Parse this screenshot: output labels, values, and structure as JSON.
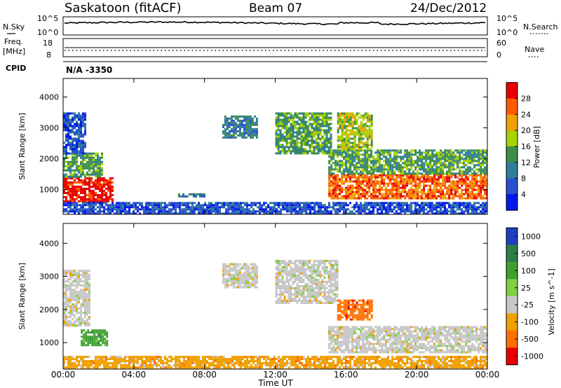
{
  "header": {
    "station": "Saskatoon (fitACF)",
    "beam": "Beam 07",
    "date": "24/Dec/2012"
  },
  "noise_panel": {
    "left_label": "N.Sky",
    "right_label": "N.Search",
    "left_ticks": [
      "10^5",
      "10^0"
    ],
    "right_ticks": [
      "10^5",
      "10^0"
    ]
  },
  "freq_panel": {
    "left_label_1": "Freq.",
    "left_label_2": "[MHz]",
    "right_label": "Nave",
    "left_ticks": [
      "18",
      "8"
    ],
    "right_ticks": [
      "60",
      "0"
    ]
  },
  "cpid": {
    "label": "CPID",
    "value": "N/A -3350"
  },
  "chart_data": [
    {
      "type": "heatmap",
      "variable": "Power",
      "ylabel": "Slant Range [km]",
      "ylim": [
        200,
        4600
      ],
      "yticks": [
        1000,
        2000,
        3000,
        4000
      ],
      "colorbar_label": "Power [dB]",
      "colorbar_ticks": [
        4,
        8,
        12,
        16,
        20,
        24,
        28
      ],
      "colorbar_range": [
        0,
        32
      ],
      "colors": [
        "#0018e8",
        "#2a4fd0",
        "#2e7d9a",
        "#3e8e4a",
        "#a8d200",
        "#f0a000",
        "#ff5a00",
        "#e80000"
      ],
      "regions": [
        {
          "t": [
            0.0,
            2.8
          ],
          "r": [
            600,
            1400
          ],
          "level": 28
        },
        {
          "t": [
            0.0,
            2.2
          ],
          "r": [
            1400,
            2200
          ],
          "level": 14
        },
        {
          "t": [
            0.0,
            1.3
          ],
          "r": [
            2200,
            3500
          ],
          "level": 7
        },
        {
          "t": [
            6.5,
            8.0
          ],
          "r": [
            780,
            880
          ],
          "level": 9
        },
        {
          "t": [
            9.0,
            11.0
          ],
          "r": [
            2700,
            3400
          ],
          "level": 10
        },
        {
          "t": [
            12.0,
            15.2
          ],
          "r": [
            2200,
            3500
          ],
          "level": 13
        },
        {
          "t": [
            15.0,
            24.0
          ],
          "r": [
            700,
            1500
          ],
          "level": 26
        },
        {
          "t": [
            15.0,
            24.0
          ],
          "r": [
            1500,
            2300
          ],
          "level": 12
        },
        {
          "t": [
            15.5,
            17.5
          ],
          "r": [
            2300,
            3500
          ],
          "level": 18
        },
        {
          "t": [
            0.0,
            24.0
          ],
          "r": [
            200,
            600
          ],
          "level": 6
        }
      ]
    },
    {
      "type": "heatmap",
      "variable": "Velocity",
      "ylabel": "Slant Range [km]",
      "ylim": [
        200,
        4600
      ],
      "yticks": [
        1000,
        2000,
        3000,
        4000
      ],
      "colorbar_label": "Velocity [m s^-1]",
      "colorbar_ticks": [
        1000,
        500,
        100,
        25,
        -25,
        -100,
        -500,
        -1000
      ],
      "colors": [
        "#2040c0",
        "#2e7d4a",
        "#3fa030",
        "#7fd040",
        "#c8c8c8",
        "#f0a000",
        "#ff7000",
        "#e80000"
      ],
      "regions": [
        {
          "t": [
            0.0,
            1.5
          ],
          "r": [
            1500,
            3200
          ],
          "velocity": 0
        },
        {
          "t": [
            1.0,
            2.5
          ],
          "r": [
            900,
            1400
          ],
          "velocity": 100
        },
        {
          "t": [
            9.0,
            11.0
          ],
          "r": [
            2700,
            3400
          ],
          "velocity": 0
        },
        {
          "t": [
            12.0,
            15.5
          ],
          "r": [
            2200,
            3500
          ],
          "velocity": 0
        },
        {
          "t": [
            15.0,
            24.0
          ],
          "r": [
            700,
            1500
          ],
          "velocity": 0
        },
        {
          "t": [
            15.5,
            17.5
          ],
          "r": [
            1700,
            2300
          ],
          "velocity": -300
        },
        {
          "t": [
            0.0,
            24.0
          ],
          "r": [
            200,
            600
          ],
          "velocity": -60
        }
      ]
    }
  ],
  "xaxis": {
    "label": "Time UT",
    "ticks": [
      "00:00",
      "04:00",
      "08:00",
      "12:00",
      "16:00",
      "20:00",
      "00:00"
    ],
    "range_hours": [
      0,
      24
    ]
  }
}
